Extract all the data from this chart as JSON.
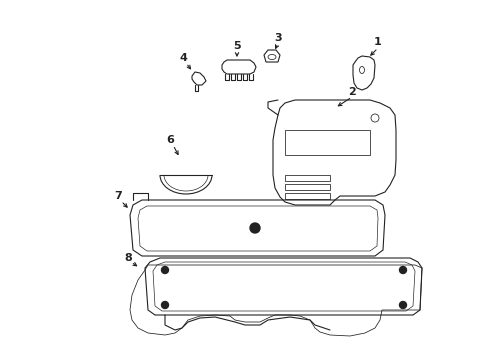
{
  "background_color": "#ffffff",
  "line_color": "#222222",
  "line_width": 0.8,
  "fig_width": 4.89,
  "fig_height": 3.6,
  "dpi": 100
}
